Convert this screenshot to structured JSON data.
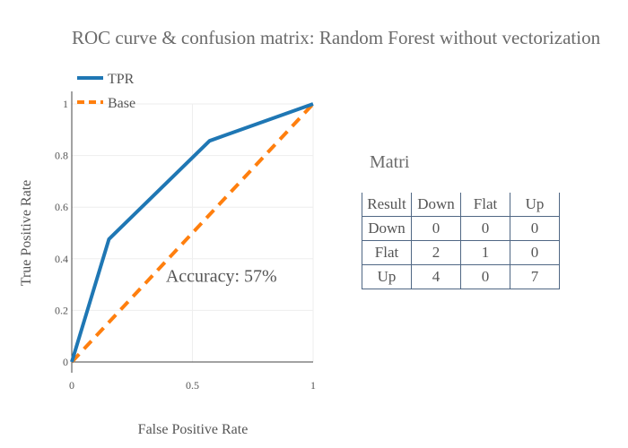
{
  "title": "ROC curve & confusion matrix: Random Forest without vectorization",
  "chart_data": {
    "type": "line",
    "xlabel": "False Positive Rate",
    "ylabel": "True Positive Rate",
    "xlim": [
      0,
      1
    ],
    "ylim": [
      0,
      1
    ],
    "x_ticks": [
      "0",
      "0.5",
      "1"
    ],
    "y_ticks": [
      "0",
      "0.2",
      "0.4",
      "0.6",
      "0.8",
      "1"
    ],
    "grid": true,
    "legend_position": "top-left",
    "series": [
      {
        "name": "TPR",
        "color": "#1f77b4",
        "dash": "solid",
        "x": [
          0,
          0.154,
          0.571,
          1
        ],
        "y": [
          0,
          0.476,
          0.857,
          1
        ]
      },
      {
        "name": "Base",
        "color": "#ff7f0e",
        "dash": "dashed",
        "x": [
          0,
          1
        ],
        "y": [
          0,
          1
        ]
      }
    ],
    "annotation": {
      "text": "Accuracy: 57%",
      "x": 0.62,
      "y": 0.31
    }
  },
  "matrix": {
    "title": "Matrix",
    "header": [
      "Result",
      "Down",
      "Flat",
      "Up"
    ],
    "rows": [
      [
        "Down",
        "0",
        "0",
        "0"
      ],
      [
        "Flat",
        "2",
        "1",
        "0"
      ],
      [
        "Up",
        "4",
        "0",
        "7"
      ]
    ]
  }
}
